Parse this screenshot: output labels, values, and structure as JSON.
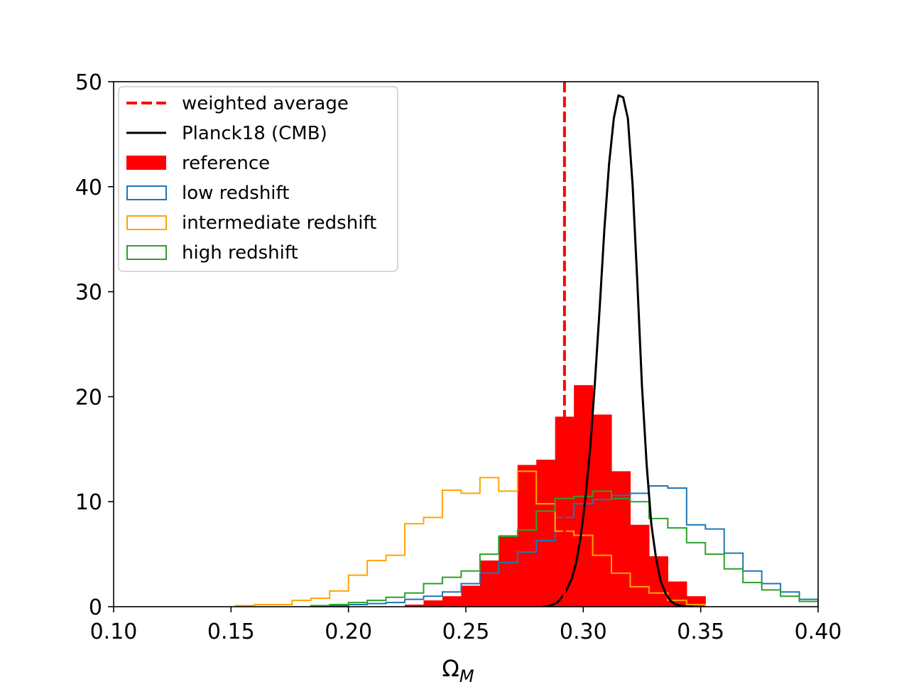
{
  "chart_data": {
    "type": "histogram",
    "xlabel": "Ω",
    "xlabel_subscript": "M",
    "ylabel": "",
    "xlim": [
      0.1,
      0.4
    ],
    "ylim": [
      0,
      50
    ],
    "xticks": [
      "0.10",
      "0.15",
      "0.20",
      "0.25",
      "0.30",
      "0.35",
      "0.40"
    ],
    "yticks": [
      "0",
      "10",
      "20",
      "30",
      "40",
      "50"
    ],
    "legend_position": "upper-left",
    "colors": {
      "reference": "#ff0000",
      "low": "#1f77b4",
      "intermediate": "#ffa500",
      "high": "#2ca02c",
      "planck": "#000000",
      "average": "#ff0000"
    },
    "weighted_average": {
      "label": "weighted average",
      "x": 0.292
    },
    "planck": {
      "label": "Planck18 (CMB)",
      "x": [
        0.283,
        0.286,
        0.289,
        0.292,
        0.295,
        0.297,
        0.299,
        0.301,
        0.303,
        0.305,
        0.307,
        0.309,
        0.311,
        0.313,
        0.315,
        0.317,
        0.319,
        0.321,
        0.323,
        0.325,
        0.327,
        0.329,
        0.331,
        0.333,
        0.335,
        0.337,
        0.339,
        0.341,
        0.344,
        0.347
      ],
      "y": [
        0.0,
        0.1,
        0.4,
        1.2,
        2.6,
        4.2,
        6.8,
        10.5,
        15.2,
        21.5,
        28.5,
        36.0,
        42.2,
        46.5,
        48.7,
        48.5,
        46.5,
        40.2,
        31.0,
        21.0,
        13.5,
        7.8,
        4.6,
        2.4,
        1.3,
        0.6,
        0.25,
        0.1,
        0.02,
        0.0
      ]
    },
    "bin_edges": [
      0.144,
      0.152,
      0.16,
      0.168,
      0.176,
      0.184,
      0.192,
      0.2,
      0.208,
      0.216,
      0.224,
      0.232,
      0.24,
      0.248,
      0.256,
      0.264,
      0.272,
      0.28,
      0.288,
      0.296,
      0.304,
      0.312,
      0.32,
      0.328,
      0.336,
      0.344,
      0.352,
      0.36
    ],
    "series": [
      {
        "name": "reference",
        "style": "filled",
        "edges": [
          0.224,
          0.232,
          0.24,
          0.248,
          0.256,
          0.264,
          0.272,
          0.28,
          0.288,
          0.296,
          0.304,
          0.312,
          0.32,
          0.328,
          0.336,
          0.344,
          0.352
        ],
        "values": [
          0.2,
          0.6,
          1.0,
          2.0,
          4.4,
          6.8,
          13.5,
          14.0,
          18.1,
          21.1,
          18.3,
          12.9,
          7.8,
          4.8,
          2.4,
          1.0
        ]
      },
      {
        "name": "low redshift",
        "style": "step",
        "edges": [
          0.192,
          0.2,
          0.208,
          0.216,
          0.224,
          0.232,
          0.24,
          0.248,
          0.256,
          0.264,
          0.272,
          0.28,
          0.288,
          0.296,
          0.304,
          0.312,
          0.32,
          0.328,
          0.336,
          0.344,
          0.352,
          0.36,
          0.368,
          0.376,
          0.384,
          0.392,
          0.4
        ],
        "values": [
          0.1,
          0.2,
          0.3,
          0.4,
          0.7,
          1.0,
          1.4,
          2.2,
          3.2,
          4.2,
          5.2,
          6.3,
          8.5,
          9.8,
          10.2,
          10.6,
          10.8,
          11.5,
          11.3,
          7.8,
          7.4,
          5.1,
          3.4,
          2.2,
          1.4,
          0.7
        ]
      },
      {
        "name": "intermediate redshift",
        "style": "step",
        "edges": [
          0.152,
          0.16,
          0.168,
          0.176,
          0.184,
          0.192,
          0.2,
          0.208,
          0.216,
          0.224,
          0.232,
          0.24,
          0.248,
          0.256,
          0.264,
          0.272,
          0.28,
          0.288,
          0.296,
          0.304,
          0.312,
          0.32,
          0.328,
          0.336,
          0.344,
          0.352
        ],
        "values": [
          0.1,
          0.2,
          0.2,
          0.6,
          0.8,
          1.5,
          3.0,
          4.4,
          4.9,
          7.9,
          8.5,
          11.1,
          10.8,
          12.3,
          11.0,
          12.9,
          9.8,
          7.2,
          6.8,
          4.9,
          3.2,
          1.9,
          1.3,
          0.6,
          0.2
        ]
      },
      {
        "name": "high redshift",
        "style": "step",
        "edges": [
          0.184,
          0.192,
          0.2,
          0.208,
          0.216,
          0.224,
          0.232,
          0.24,
          0.248,
          0.256,
          0.264,
          0.272,
          0.28,
          0.288,
          0.296,
          0.304,
          0.312,
          0.32,
          0.328,
          0.336,
          0.344,
          0.352,
          0.36,
          0.368,
          0.376,
          0.384,
          0.392,
          0.4
        ],
        "values": [
          0.1,
          0.2,
          0.4,
          0.6,
          0.9,
          1.3,
          2.2,
          2.8,
          3.4,
          5.0,
          6.7,
          7.3,
          9.1,
          10.3,
          10.5,
          11.0,
          10.3,
          10.0,
          8.4,
          7.5,
          6.1,
          5.0,
          3.6,
          2.3,
          1.6,
          1.0,
          0.5
        ]
      }
    ],
    "legend": [
      {
        "label": "weighted average",
        "kind": "dashed-line",
        "color": "#ff0000"
      },
      {
        "label": "Planck18 (CMB)",
        "kind": "line",
        "color": "#000000"
      },
      {
        "label": "reference",
        "kind": "filled-patch",
        "color": "#ff0000"
      },
      {
        "label": "low redshift",
        "kind": "open-patch",
        "color": "#1f77b4"
      },
      {
        "label": "intermediate redshift",
        "kind": "open-patch",
        "color": "#ffa500"
      },
      {
        "label": "high redshift",
        "kind": "open-patch",
        "color": "#2ca02c"
      }
    ]
  }
}
